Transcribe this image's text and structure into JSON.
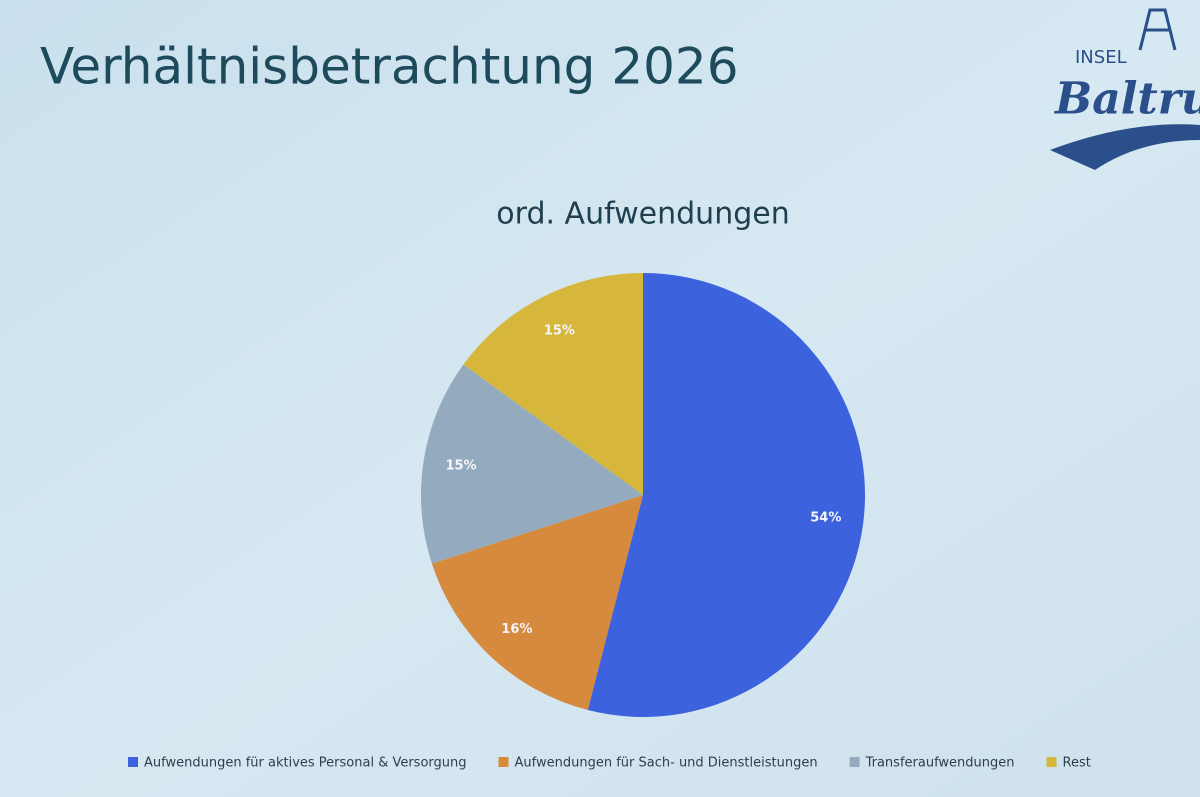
{
  "slide": {
    "title": "Verhältnisbetrachtung 2026",
    "logo": {
      "top": "INSEL",
      "script": "Baltru"
    }
  },
  "chart_data": {
    "type": "pie",
    "title": "ord. Aufwendungen",
    "categories": [
      "Aufwendungen für aktives Personal & Versorgung",
      "Aufwendungen für Sach- und Dienstleistungen",
      "Transferaufwendungen",
      "Rest"
    ],
    "values": [
      54,
      16,
      15,
      15
    ],
    "value_labels": [
      "54%",
      "16%",
      "15%",
      "15%"
    ],
    "colors": [
      "#3d62de",
      "#d58a3e",
      "#94abbf",
      "#d6b73c"
    ],
    "legend": "bottom"
  }
}
